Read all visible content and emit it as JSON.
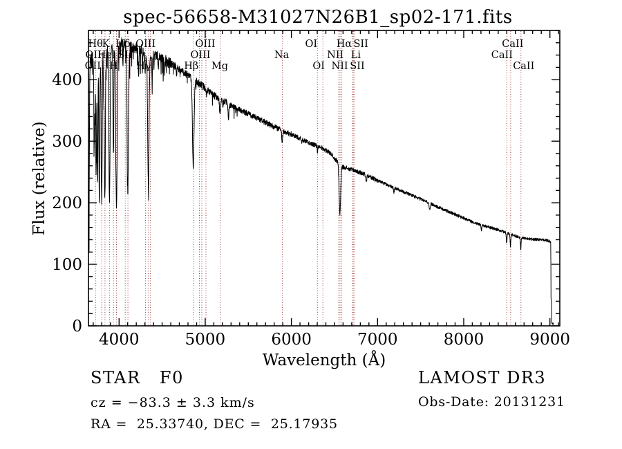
{
  "chart_data": {
    "type": "line",
    "title": "spec-56658-M31027N26B1_sp02-171.fits",
    "xlabel": "Wavelength (Å)",
    "ylabel": "Flux (relative)",
    "xlim": [
      3645,
      9115
    ],
    "ylim": [
      0,
      480
    ],
    "x_ticks": [
      4000,
      5000,
      6000,
      7000,
      8000,
      9000
    ],
    "y_ticks": [
      0,
      100,
      200,
      300,
      400
    ],
    "x_minor_step": 100,
    "y_minor_step": 20,
    "grid": false,
    "legend": "none",
    "line_color": "#000000",
    "marker_color": "#a03c3c",
    "spectral_lines": [
      3727.1,
      3798.98,
      3836.5,
      3889.0,
      3934.8,
      3969.6,
      4072.0,
      4102.9,
      4305.6,
      4341.7,
      4364.4,
      4862.7,
      4932.6,
      4960.3,
      5008.2,
      5176.7,
      5895.6,
      6302.0,
      6365.5,
      6549.9,
      6564.6,
      6585.3,
      6707.9,
      6718.3,
      6732.7,
      8500.4,
      8544.4,
      8664.5
    ],
    "line_labels": [
      {
        "text": "Hθ",
        "row": 1,
        "wl": 3798.98,
        "dx": -9
      },
      {
        "text": "K",
        "row": 1,
        "wl": 3934.8,
        "dx": -11
      },
      {
        "text": "Hδ",
        "row": 1,
        "wl": 4102.9,
        "dx": -7
      },
      {
        "text": "OIII",
        "row": 1,
        "wl": 4364.4,
        "dx": -7
      },
      {
        "text": "OIII",
        "row": 1,
        "wl": 5008.2,
        "dx": -1
      },
      {
        "text": "OI",
        "row": 1,
        "wl": 6302.0,
        "dx": -9
      },
      {
        "text": "Hα",
        "row": 1,
        "wl": 6564.6,
        "dx": 6
      },
      {
        "text": "SII",
        "row": 1,
        "wl": 6718.3,
        "dx": 11
      },
      {
        "text": "CaII",
        "row": 1,
        "wl": 8544.4,
        "dx": 3
      },
      {
        "text": "OII",
        "row": 2,
        "wl": 3727.1,
        "dx": -3
      },
      {
        "text": "HeI",
        "row": 2,
        "wl": 3889.0,
        "dx": -4
      },
      {
        "text": "SII",
        "row": 2,
        "wl": 4072.0,
        "dx": 0
      },
      {
        "text": "OIII",
        "row": 2,
        "wl": 4960.3,
        "dx": -2
      },
      {
        "text": "Na",
        "row": 2,
        "wl": 5895.6,
        "dx": -1
      },
      {
        "text": "NII",
        "row": 2,
        "wl": 6549.9,
        "dx": -5
      },
      {
        "text": "Li",
        "row": 2,
        "wl": 6707.9,
        "dx": 5
      },
      {
        "text": "CaII",
        "row": 2,
        "wl": 8500.4,
        "dx": -7
      },
      {
        "text": "OIII",
        "row": 3,
        "wl": 3727.1,
        "dx": -1
      },
      {
        "text": "H",
        "row": 3,
        "wl": 3969.6,
        "dx": -4
      },
      {
        "text": "Hγ",
        "row": 3,
        "wl": 4341.7,
        "dx": -7
      },
      {
        "text": "Hβ",
        "row": 3,
        "wl": 4862.7,
        "dx": -3
      },
      {
        "text": "Mg",
        "row": 3,
        "wl": 5176.7,
        "dx": -1
      },
      {
        "text": "OI",
        "row": 3,
        "wl": 6365.5,
        "dx": -6
      },
      {
        "text": "NII",
        "row": 3,
        "wl": 6585.3,
        "dx": -3
      },
      {
        "text": "SII",
        "row": 3,
        "wl": 6732.7,
        "dx": 4
      },
      {
        "text": "CaII",
        "row": 3,
        "wl": 8664.5,
        "dx": 4
      }
    ],
    "continuum": [
      [
        3650,
        55
      ],
      [
        3654,
        210
      ],
      [
        3658,
        360
      ],
      [
        3663,
        420
      ],
      [
        3672,
        428
      ],
      [
        3690,
        433
      ],
      [
        3710,
        438
      ],
      [
        3730,
        442
      ],
      [
        3760,
        448
      ],
      [
        3800,
        446
      ],
      [
        3860,
        452
      ],
      [
        3920,
        456
      ],
      [
        3980,
        456
      ],
      [
        4040,
        460
      ],
      [
        4100,
        455
      ],
      [
        4160,
        452
      ],
      [
        4220,
        450
      ],
      [
        4280,
        448
      ],
      [
        4340,
        443
      ],
      [
        4400,
        440
      ],
      [
        4460,
        437
      ],
      [
        4520,
        433
      ],
      [
        4580,
        428
      ],
      [
        4650,
        422
      ],
      [
        4750,
        412
      ],
      [
        4850,
        402
      ],
      [
        4950,
        392
      ],
      [
        5050,
        380
      ],
      [
        5150,
        370
      ],
      [
        5250,
        362
      ],
      [
        5350,
        355
      ],
      [
        5450,
        348
      ],
      [
        5550,
        341
      ],
      [
        5650,
        334
      ],
      [
        5750,
        327
      ],
      [
        5850,
        320
      ],
      [
        5950,
        314
      ],
      [
        6050,
        308
      ],
      [
        6150,
        301
      ],
      [
        6250,
        295
      ],
      [
        6350,
        289
      ],
      [
        6450,
        281
      ],
      [
        6500,
        272
      ],
      [
        6600,
        258
      ],
      [
        6700,
        254
      ],
      [
        6800,
        249
      ],
      [
        6900,
        243
      ],
      [
        7000,
        236
      ],
      [
        7100,
        230
      ],
      [
        7200,
        224
      ],
      [
        7300,
        218
      ],
      [
        7400,
        212
      ],
      [
        7500,
        206
      ],
      [
        7600,
        200
      ],
      [
        7700,
        193
      ],
      [
        7800,
        187
      ],
      [
        7900,
        181
      ],
      [
        8000,
        175
      ],
      [
        8100,
        169
      ],
      [
        8200,
        164
      ],
      [
        8300,
        160
      ],
      [
        8400,
        156
      ],
      [
        8500,
        151
      ],
      [
        8600,
        146
      ],
      [
        8700,
        142
      ],
      [
        8800,
        141
      ],
      [
        8900,
        140
      ],
      [
        8960,
        139
      ],
      [
        9010,
        137
      ],
      [
        9013,
        45
      ],
      [
        9018,
        38
      ],
      [
        9022,
        6
      ],
      [
        9040,
        3
      ]
    ],
    "absorption_lines": [
      [
        3712,
        160,
        4
      ],
      [
        3722,
        110,
        3
      ],
      [
        3734,
        200,
        4
      ],
      [
        3750,
        225,
        5
      ],
      [
        3771,
        235,
        5
      ],
      [
        3798,
        248,
        6
      ],
      [
        3820,
        60,
        3
      ],
      [
        3835,
        255,
        6
      ],
      [
        3860,
        45,
        3
      ],
      [
        3889,
        250,
        7
      ],
      [
        3934,
        175,
        5
      ],
      [
        3970,
        265,
        8
      ],
      [
        4045,
        35,
        3
      ],
      [
        4102,
        235,
        8
      ],
      [
        4226,
        45,
        4
      ],
      [
        4271,
        30,
        3
      ],
      [
        4305,
        30,
        6
      ],
      [
        4340,
        215,
        8
      ],
      [
        4383,
        42,
        4
      ],
      [
        4405,
        28,
        3
      ],
      [
        4455,
        20,
        3
      ],
      [
        4531,
        22,
        3
      ],
      [
        4668,
        18,
        3
      ],
      [
        4861,
        142,
        9
      ],
      [
        5015,
        15,
        3
      ],
      [
        5167,
        14,
        4
      ],
      [
        5176,
        20,
        5
      ],
      [
        5270,
        26,
        5
      ],
      [
        5893,
        16,
        6
      ],
      [
        6122,
        8,
        3
      ],
      [
        6302,
        8,
        4
      ],
      [
        6563,
        80,
        9
      ],
      [
        6870,
        10,
        5
      ],
      [
        7190,
        8,
        5
      ],
      [
        7605,
        12,
        6
      ],
      [
        8205,
        8,
        5
      ],
      [
        8498,
        17,
        4
      ],
      [
        8542,
        21,
        4
      ],
      [
        8662,
        18,
        4
      ]
    ],
    "noise": [
      [
        3645,
        3900,
        14
      ],
      [
        3900,
        4600,
        9
      ],
      [
        4600,
        5300,
        6
      ],
      [
        5300,
        6000,
        4.5
      ],
      [
        6000,
        7000,
        3.5
      ],
      [
        7000,
        8000,
        2.5
      ],
      [
        8000,
        9045,
        2.2
      ]
    ],
    "spikes": [
      [
        3680,
        4650,
        0.1,
        40
      ],
      [
        4650,
        5400,
        0.05,
        15
      ]
    ]
  },
  "annotations": {
    "class_label": "STAR   F0",
    "cz": "cz = −83.3 ± 3.3 km/s",
    "radec": "RA =  25.33740, DEC =  25.17935",
    "survey": "LAMOST DR3",
    "obs_date": "Obs-Date: 20131231"
  }
}
